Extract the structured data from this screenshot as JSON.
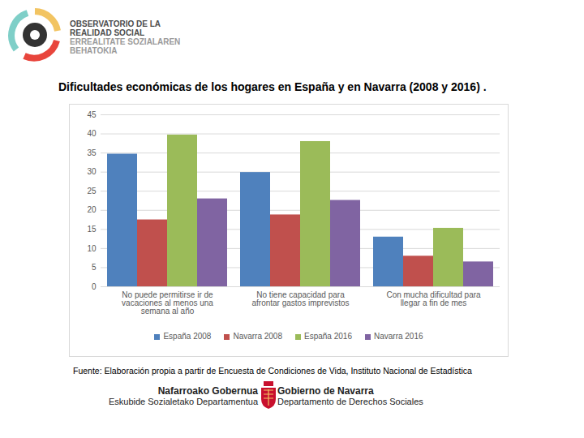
{
  "header": {
    "logo_lines_es": [
      "OBSERVATORIO DE LA",
      "REALIDAD SOCIAL"
    ],
    "logo_lines_eu": [
      "ERREALITATE SOZIALAREN",
      "BEHATOKIA"
    ]
  },
  "chart_data": {
    "type": "bar",
    "title": "Dificultades económicas de los hogares en España y en Navarra (2008 y 2016) .",
    "categories": [
      "No puede permitirse ir de vacaciones al menos una semana al año",
      "No tiene capacidad para afrontar gastos imprevistos",
      "Con mucha dificultad para llegar a fin de mes"
    ],
    "series": [
      {
        "name": "España 2008",
        "color": "#4f81bd",
        "values": [
          34.7,
          29.9,
          13.0
        ]
      },
      {
        "name": "Navarra 2008",
        "color": "#c0504d",
        "values": [
          17.5,
          18.8,
          8.0
        ]
      },
      {
        "name": "España 2016",
        "color": "#9bbb59",
        "values": [
          39.7,
          38.0,
          15.3
        ]
      },
      {
        "name": "Navarra 2016",
        "color": "#8064a2",
        "values": [
          23.0,
          22.6,
          6.5
        ]
      }
    ],
    "ylim": [
      0,
      45
    ],
    "yticks": [
      0,
      5,
      10,
      15,
      20,
      25,
      30,
      35,
      40,
      45
    ],
    "grid": true,
    "legend": "bottom",
    "data_labels": false,
    "source": "Fuente: Elaboración propia a partir de Encuesta de Condiciones de Vida, Instituto Nacional de Estadística"
  },
  "footer": {
    "left": [
      "Nafarroako Gobernua",
      "Eskubide Sozialetako Departamentua"
    ],
    "right": [
      "Gobierno de Navarra",
      "Departamento de Derechos Sociales"
    ]
  }
}
